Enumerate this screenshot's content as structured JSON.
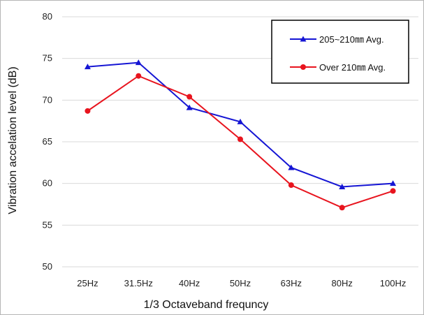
{
  "chart_data": {
    "type": "line",
    "title": "",
    "xlabel": "1/3 Octaveband frequncy",
    "ylabel": "Vibration accelation level (dB)",
    "categories": [
      "25Hz",
      "31.5Hz",
      "40Hz",
      "50Hz",
      "63Hz",
      "80Hz",
      "100Hz"
    ],
    "ylim": [
      50,
      80
    ],
    "yticks": [
      "50",
      "55",
      "60",
      "65",
      "70",
      "75",
      "80"
    ],
    "grid": "horizontal",
    "legend_position": "top-right",
    "series": [
      {
        "name": "205~210㎜ Avg.",
        "color": "#1515d4",
        "marker": "triangle",
        "values": [
          74.0,
          74.5,
          69.1,
          67.4,
          61.9,
          59.6,
          60.0
        ]
      },
      {
        "name": "Over 210㎜ Avg.",
        "color": "#e8141e",
        "marker": "circle",
        "values": [
          68.7,
          72.9,
          70.4,
          65.3,
          59.8,
          57.1,
          59.1
        ]
      }
    ]
  }
}
